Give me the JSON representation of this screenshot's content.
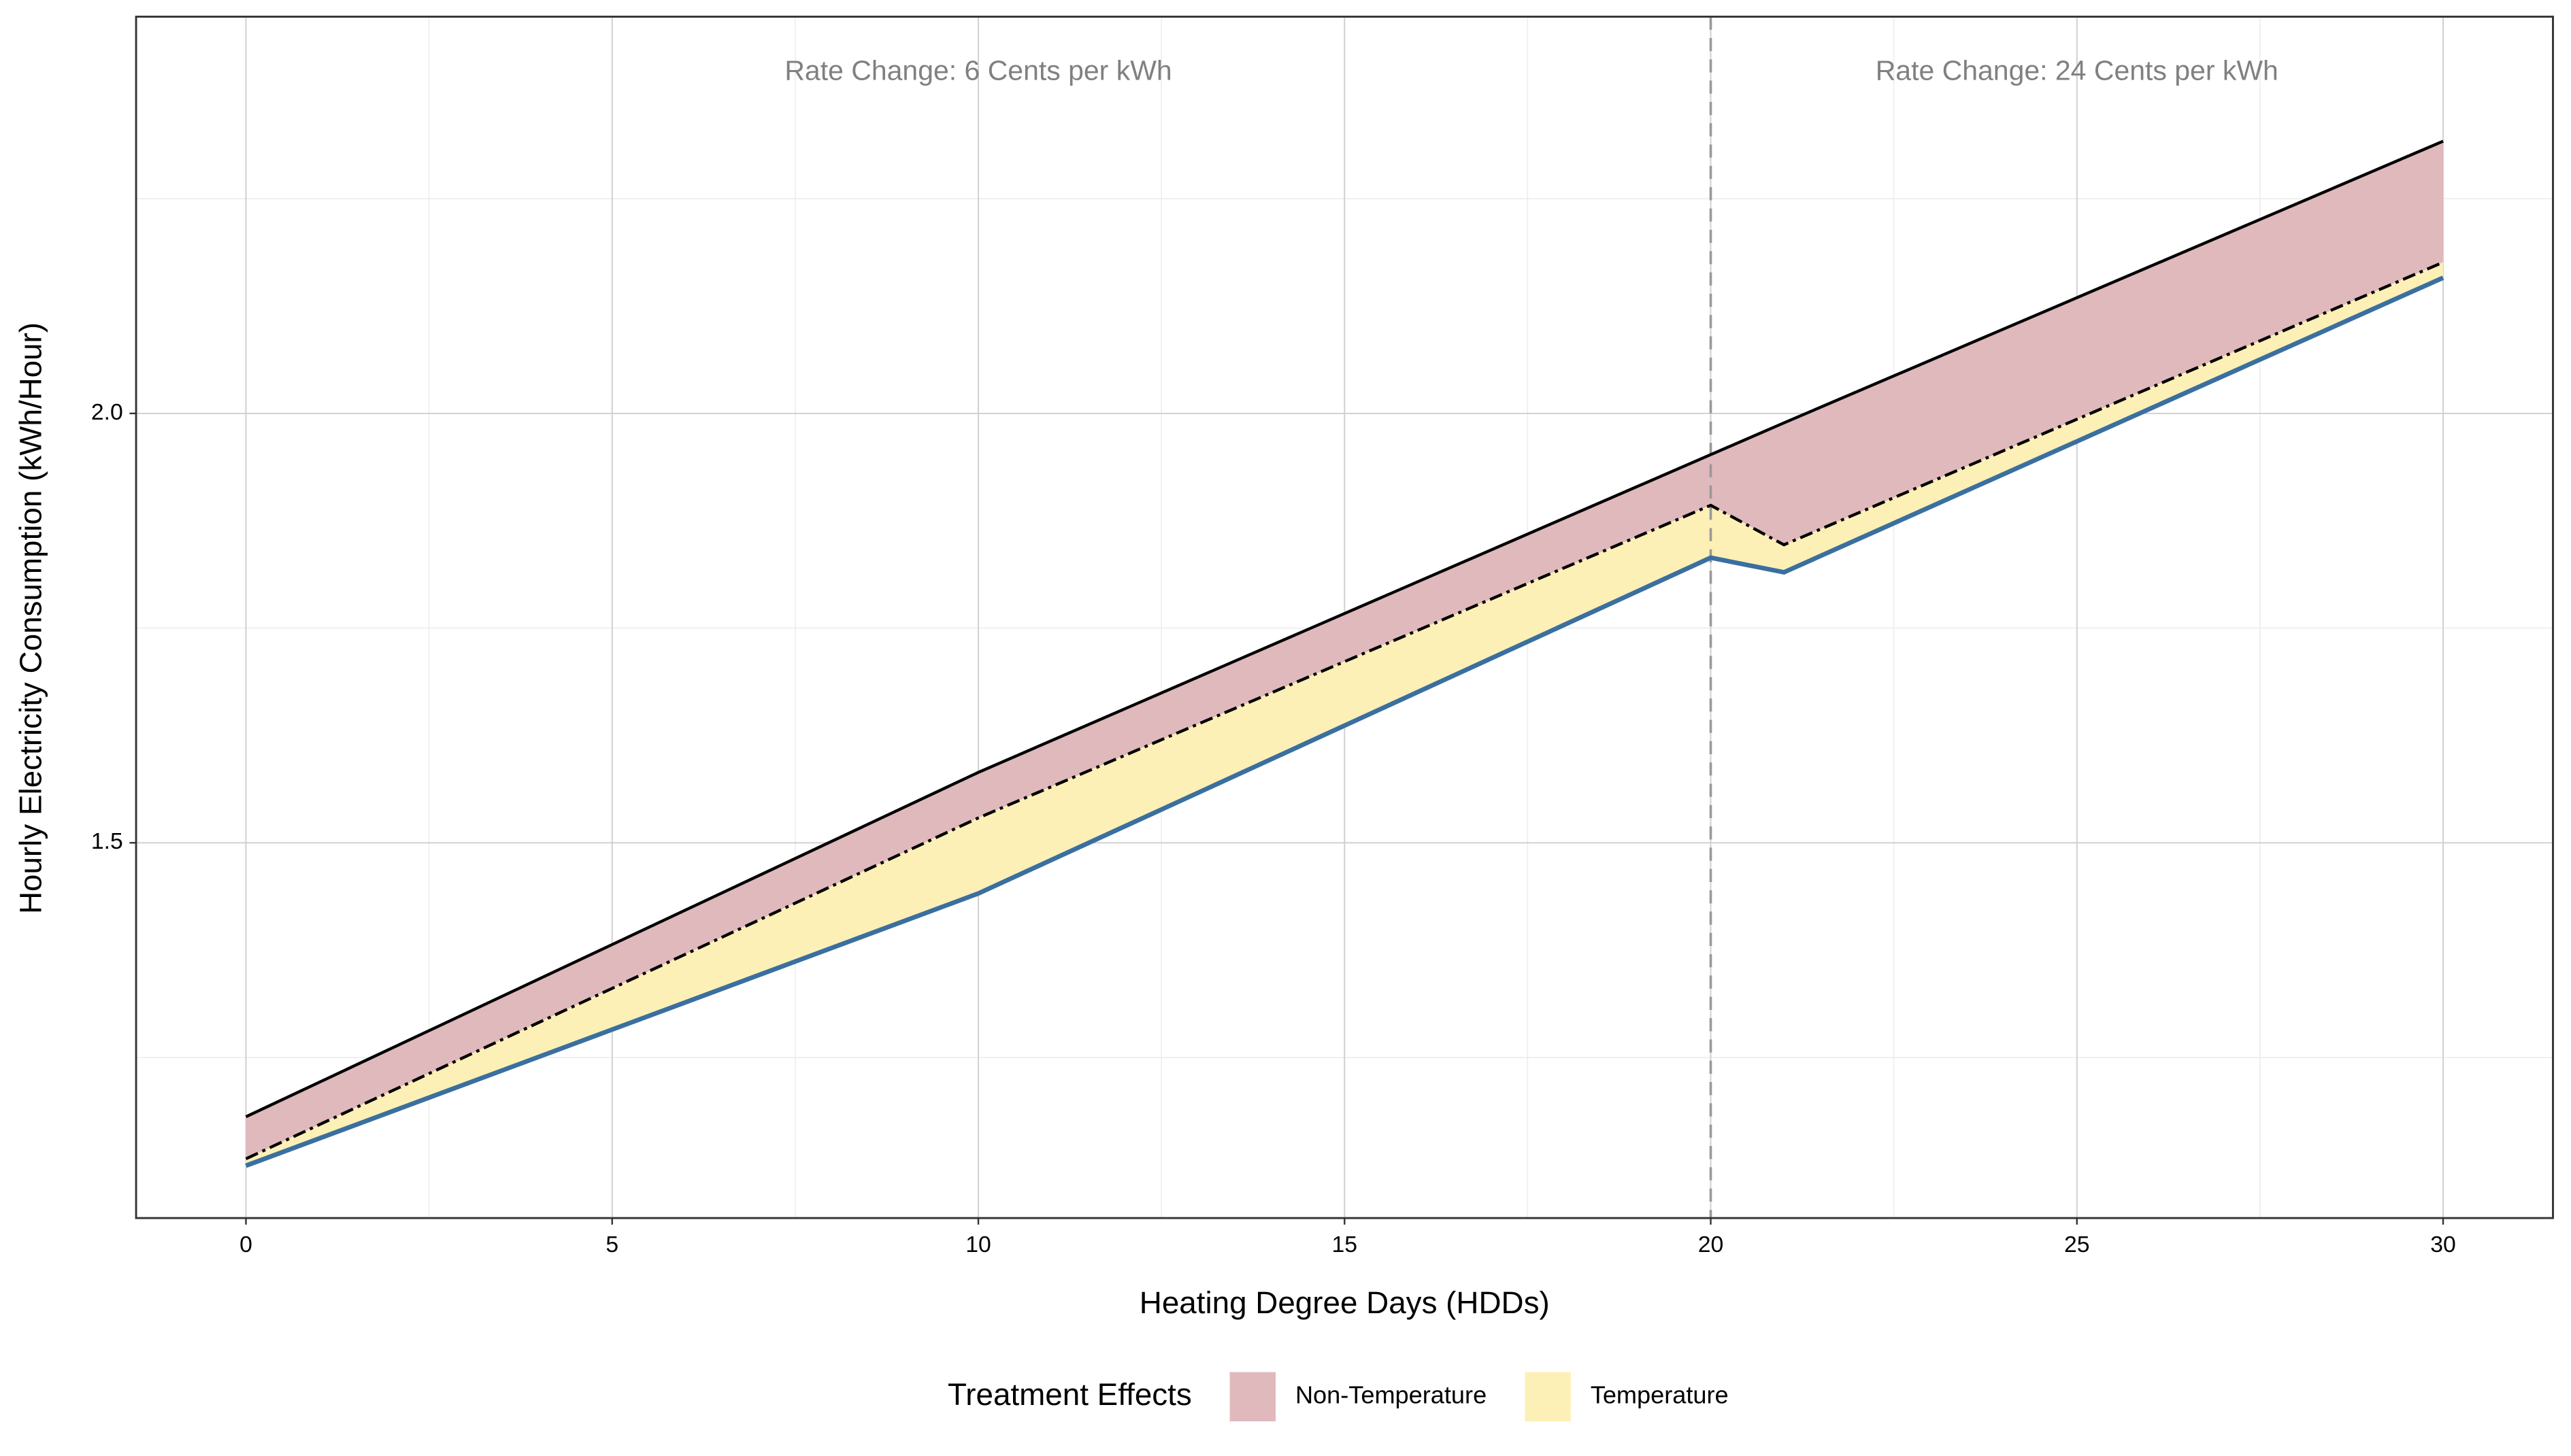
{
  "chart_data": {
    "type": "line",
    "xlabel": "Heating Degree Days  (HDDs)",
    "ylabel": "Hourly Electricity Consumption  (kWh/Hour)",
    "x": [
      0,
      10,
      20,
      21,
      30
    ],
    "series": [
      {
        "color": "#000000",
        "dash": "solid",
        "values": [
          1.181,
          1.582,
          1.952,
          1.989,
          2.317
        ]
      },
      {
        "color": "#000000",
        "dash": "dashdot",
        "values": [
          1.132,
          1.529,
          1.893,
          1.847,
          2.176
        ]
      },
      {
        "color": "#3a6fa0",
        "dash": "solid",
        "values": [
          1.124,
          1.441,
          1.832,
          1.815,
          2.158
        ]
      }
    ],
    "areas": [
      {
        "name": "Non-Temperature",
        "color": "#e0b9bc"
      },
      {
        "name": "Temperature",
        "color": "#fdf0b6"
      }
    ],
    "legend_title": "Treatment Effects",
    "legend_position": "bottom",
    "vline": 20,
    "annotations": [
      {
        "text": "Rate Change: 6 Cents per kWh",
        "x": 10,
        "y": 2.397
      },
      {
        "text": "Rate Change: 24 Cents per kWh",
        "x": 25,
        "y": 2.397
      }
    ],
    "xlim": [
      -1.5,
      31.5
    ],
    "ylim": [
      1.063,
      2.462
    ],
    "xticks": [
      0,
      5,
      10,
      15,
      20,
      25,
      30
    ],
    "yticks": [
      1.5,
      {
        "value": 2,
        "label": "2.0"
      }
    ],
    "xminor": [
      2.5,
      7.5,
      12.5,
      17.5,
      22.5,
      27.5
    ],
    "yminor": [
      1.25,
      1.75,
      2.25
    ],
    "grid": true
  }
}
